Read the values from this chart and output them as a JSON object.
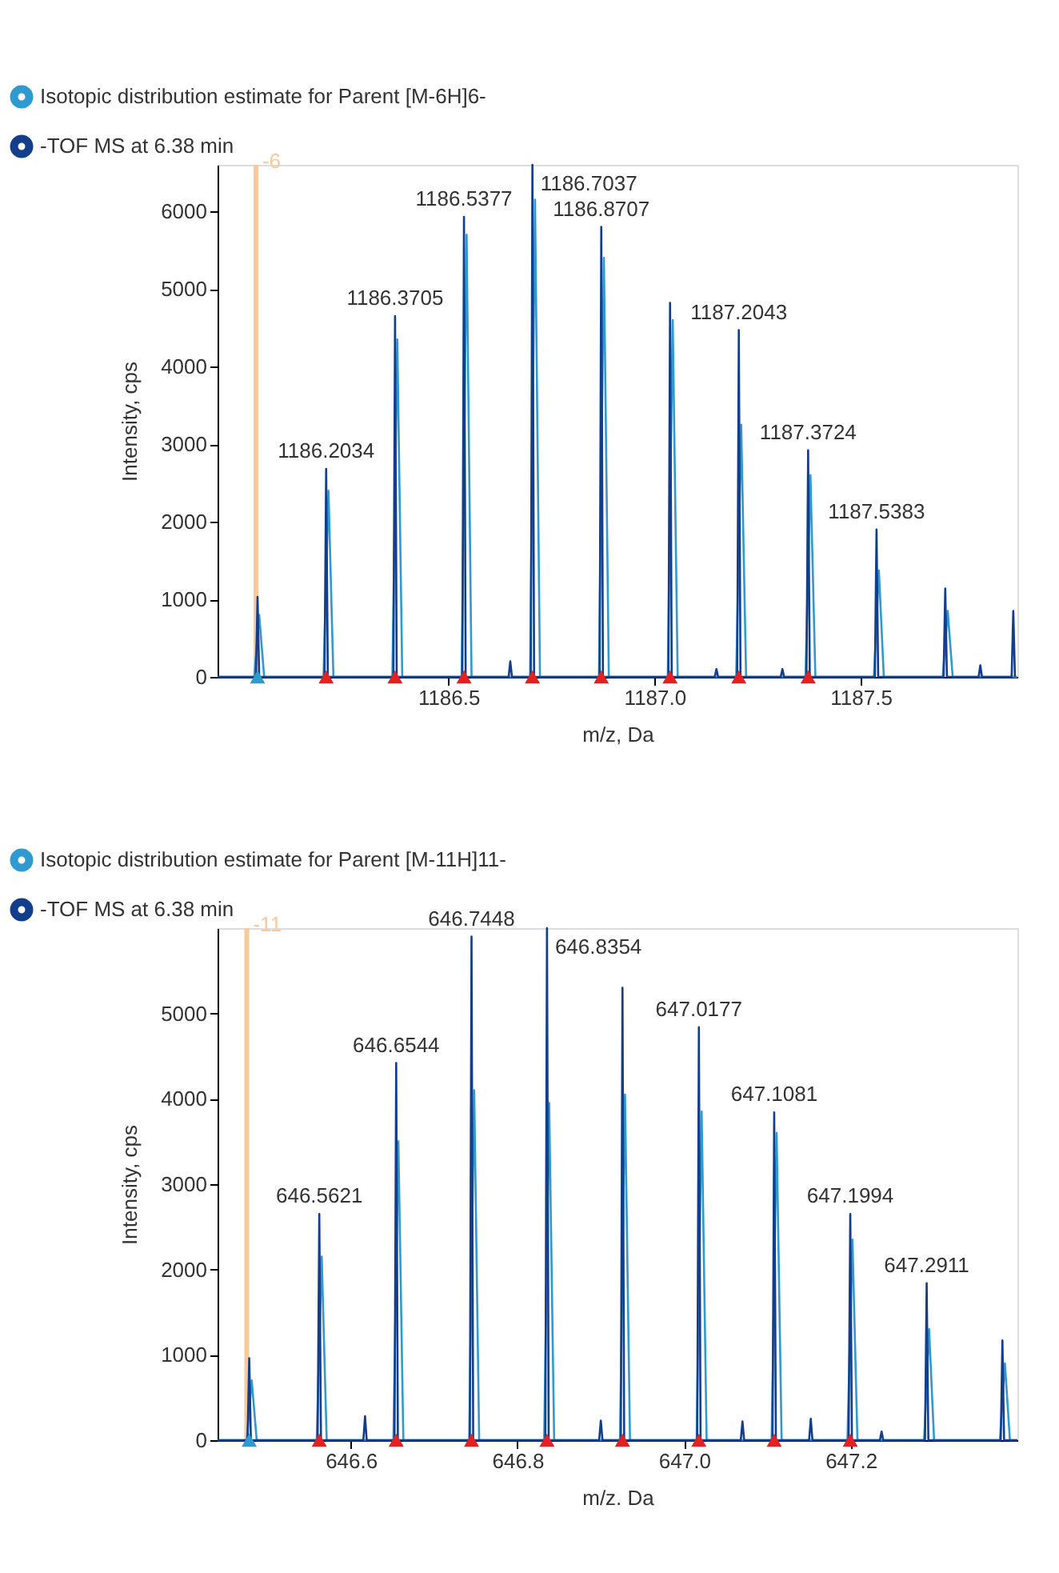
{
  "chart_data": [
    {
      "type": "line",
      "xlabel": "m/z, Da",
      "ylabel": "Intensity, cps",
      "legend": "top left",
      "grid": false,
      "xlim": [
        1185.94,
        1187.88
      ],
      "ylim": [
        0,
        6600
      ],
      "xticks": [
        {
          "value": 1186.5,
          "label": "1186.5"
        },
        {
          "value": 1187.0,
          "label": "1187.0"
        },
        {
          "value": 1187.5,
          "label": "1187.5"
        }
      ],
      "yticks": [
        0,
        1000,
        2000,
        3000,
        4000,
        5000,
        6000
      ],
      "series": [
        {
          "name": "Isotopic distribution estimate for Parent [M-6H]6-",
          "color": "#2e9ad0",
          "x": [
            1185.94,
            1186.029,
            1186.041,
            1186.053,
            1186.197,
            1186.209,
            1186.221,
            1186.364,
            1186.376,
            1186.388,
            1186.532,
            1186.544,
            1186.556,
            1186.698,
            1186.71,
            1186.722,
            1186.865,
            1186.877,
            1186.889,
            1187.032,
            1187.044,
            1187.056,
            1187.198,
            1187.21,
            1187.222,
            1187.366,
            1187.378,
            1187.39,
            1187.532,
            1187.544,
            1187.556,
            1187.699,
            1187.711,
            1187.723,
            1187.88
          ],
          "values": [
            0,
            0,
            800,
            0,
            0,
            2400,
            0,
            0,
            4350,
            0,
            0,
            5700,
            0,
            0,
            6150,
            0,
            0,
            5400,
            0,
            0,
            4600,
            0,
            0,
            3250,
            0,
            0,
            2600,
            0,
            0,
            1370,
            0,
            0,
            850,
            0,
            0
          ]
        },
        {
          "name": "-TOF MS at 6.38 min",
          "color": "#123e8c",
          "x": [
            1185.94,
            1186.033,
            1186.037,
            1186.041,
            1186.1994,
            1186.2034,
            1186.2074,
            1186.3665,
            1186.3705,
            1186.3745,
            1186.5337,
            1186.5377,
            1186.5417,
            1186.646,
            1186.65,
            1186.654,
            1186.6997,
            1186.7037,
            1186.7077,
            1186.8667,
            1186.8707,
            1186.8747,
            1187.0335,
            1187.0375,
            1187.0415,
            1187.146,
            1187.15,
            1187.154,
            1187.2003,
            1187.2043,
            1187.2083,
            1187.306,
            1187.31,
            1187.314,
            1187.3684,
            1187.3724,
            1187.3764,
            1187.5343,
            1187.5383,
            1187.5423,
            1187.701,
            1187.705,
            1187.709,
            1187.786,
            1187.79,
            1187.794,
            1187.866,
            1187.87,
            1187.874
          ],
          "values": [
            0,
            0,
            1030,
            0,
            0,
            2680,
            0,
            0,
            4650,
            0,
            0,
            5930,
            0,
            0,
            200,
            0,
            0,
            6600,
            0,
            0,
            5800,
            0,
            0,
            4820,
            0,
            0,
            100,
            0,
            0,
            4470,
            0,
            0,
            100,
            0,
            0,
            2920,
            0,
            0,
            1900,
            0,
            0,
            1140,
            0,
            0,
            150,
            0,
            0,
            850,
            0
          ]
        },
        {
          "type": "scatter",
          "marker": "triangle",
          "color": "#e52020",
          "x": [
            1186.2034,
            1186.3705,
            1186.5377,
            1186.7037,
            1186.8707,
            1187.0375,
            1187.2043,
            1187.3724
          ],
          "values": [
            0,
            0,
            0,
            0,
            0,
            0,
            0,
            0
          ]
        },
        {
          "type": "scatter",
          "marker": "triangle",
          "color": "#2e9ad0",
          "x": [
            1186.037
          ],
          "values": [
            0
          ]
        }
      ],
      "ref_lines": [
        {
          "axis": "x",
          "value": 1186.033,
          "color": "#f9c89b"
        }
      ],
      "annotations": [
        {
          "text": "-6",
          "x": 1186.033,
          "y": 6600
        },
        {
          "text": "1186.2034",
          "x": 1186.2034,
          "y": 2680
        },
        {
          "text": "1186.3705",
          "x": 1186.3705,
          "y": 4650
        },
        {
          "text": "1186.5377",
          "x": 1186.5377,
          "y": 5930
        },
        {
          "text": "1186.7037",
          "x": 1186.7037,
          "y": 6600
        },
        {
          "text": "1186.8707",
          "x": 1186.8707,
          "y": 5800
        },
        {
          "text": "1187.2043",
          "x": 1187.2043,
          "y": 4470
        },
        {
          "text": "1187.3724",
          "x": 1187.3724,
          "y": 2920
        },
        {
          "text": "1187.5383",
          "x": 1187.5383,
          "y": 1900
        }
      ]
    },
    {
      "type": "line",
      "xlabel": "m/z. Da",
      "ylabel": "Intensity, cps",
      "legend": "top left",
      "grid": false,
      "xlim": [
        646.44,
        647.4
      ],
      "ylim": [
        0,
        6000
      ],
      "xticks": [
        {
          "value": 646.6,
          "label": "646.6"
        },
        {
          "value": 646.8,
          "label": "646.8"
        },
        {
          "value": 647.0,
          "label": "647.0"
        },
        {
          "value": 647.2,
          "label": "647.2"
        }
      ],
      "yticks": [
        0,
        1000,
        2000,
        3000,
        4000,
        5000
      ],
      "series": [
        {
          "name": "Isotopic distribution estimate for Parent [M-11H]11-",
          "color": "#2e9ad0",
          "x": [
            646.44,
            646.475,
            646.481,
            646.487,
            646.559,
            646.565,
            646.571,
            646.651,
            646.657,
            646.663,
            646.742,
            646.748,
            646.754,
            646.832,
            646.838,
            646.844,
            646.923,
            646.929,
            646.935,
            647.015,
            647.021,
            647.027,
            647.105,
            647.111,
            647.117,
            647.196,
            647.202,
            647.208,
            647.288,
            647.294,
            647.3,
            647.379,
            647.385,
            647.391,
            647.4
          ],
          "values": [
            0,
            0,
            700,
            0,
            0,
            2150,
            0,
            0,
            3500,
            0,
            0,
            4100,
            0,
            0,
            3950,
            0,
            0,
            4050,
            0,
            0,
            3850,
            0,
            0,
            3600,
            0,
            0,
            2350,
            0,
            0,
            1300,
            0,
            0,
            900,
            0,
            0
          ]
        },
        {
          "name": "-TOF MS at 6.38 min",
          "color": "#123e8c",
          "x": [
            646.44,
            646.476,
            646.478,
            646.48,
            646.5601,
            646.5621,
            646.5641,
            646.615,
            646.617,
            646.619,
            646.6524,
            646.6544,
            646.6564,
            646.7428,
            646.7448,
            646.7468,
            646.8334,
            646.8354,
            646.8374,
            646.898,
            646.9,
            646.902,
            646.924,
            646.926,
            646.928,
            647.0157,
            647.0177,
            647.0197,
            647.068,
            647.07,
            647.072,
            647.1061,
            647.1081,
            647.1101,
            647.15,
            647.152,
            647.154,
            647.1974,
            647.1994,
            647.2014,
            647.235,
            647.237,
            647.239,
            647.2891,
            647.2911,
            647.2931,
            647.38,
            647.382,
            647.384,
            647.4
          ],
          "values": [
            0,
            0,
            960,
            0,
            0,
            2650,
            0,
            0,
            280,
            0,
            0,
            4420,
            0,
            0,
            5900,
            0,
            0,
            6000,
            0,
            0,
            230,
            0,
            0,
            5300,
            0,
            0,
            4840,
            0,
            0,
            220,
            0,
            0,
            3840,
            0,
            0,
            250,
            0,
            0,
            2650,
            0,
            0,
            100,
            0,
            0,
            1840,
            0,
            0,
            1170,
            0,
            0
          ]
        },
        {
          "type": "scatter",
          "marker": "triangle",
          "color": "#e52020",
          "x": [
            646.5621,
            646.6544,
            646.7448,
            646.8354,
            646.926,
            647.0177,
            647.1081,
            647.1994
          ],
          "values": [
            0,
            0,
            0,
            0,
            0,
            0,
            0,
            0
          ]
        },
        {
          "type": "scatter",
          "marker": "triangle",
          "color": "#2e9ad0",
          "x": [
            646.478
          ],
          "values": [
            0
          ]
        }
      ],
      "ref_lines": [
        {
          "axis": "x",
          "value": 646.475,
          "color": "#f9c89b"
        }
      ],
      "annotations": [
        {
          "text": "-11",
          "x": 646.475,
          "y": 6000
        },
        {
          "text": "646.5621",
          "x": 646.5621,
          "y": 2650
        },
        {
          "text": "646.6544",
          "x": 646.6544,
          "y": 4420
        },
        {
          "text": "646.7448",
          "x": 646.7448,
          "y": 5900
        },
        {
          "text": "646.8354",
          "x": 646.8354,
          "y": 6000
        },
        {
          "text": "647.0177",
          "x": 647.0177,
          "y": 4840
        },
        {
          "text": "647.1081",
          "x": 647.1081,
          "y": 3840
        },
        {
          "text": "647.1994",
          "x": 647.1994,
          "y": 2650
        },
        {
          "text": "647.2911",
          "x": 647.2911,
          "y": 1840
        }
      ]
    }
  ]
}
